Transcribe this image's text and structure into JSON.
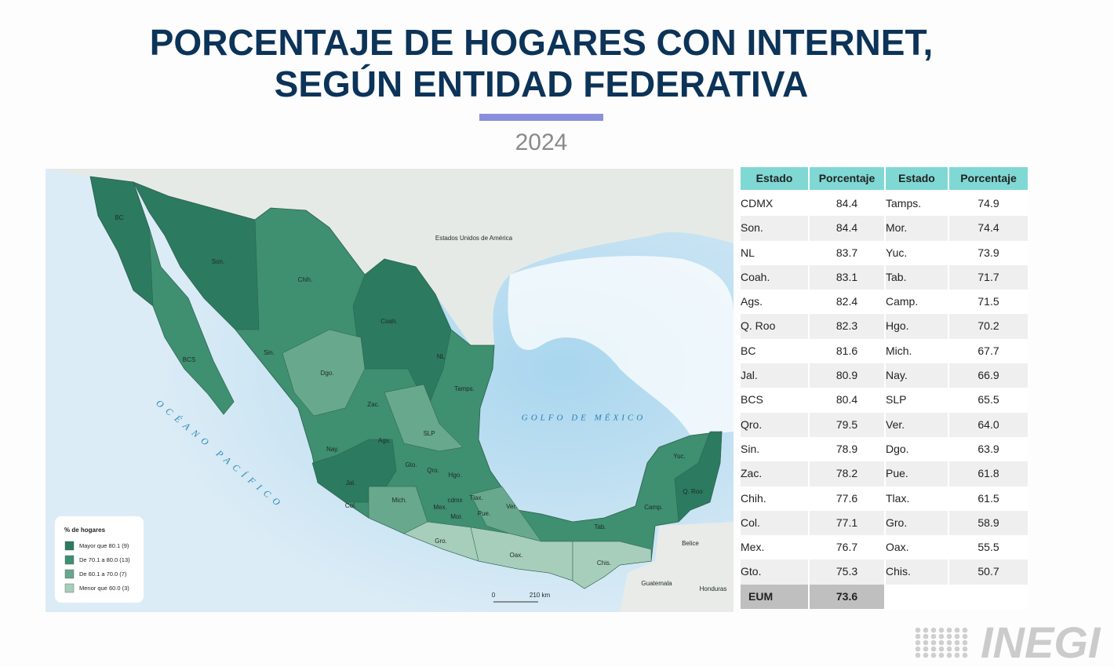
{
  "header": {
    "title_line1": "PORCENTAJE DE HOGARES CON INTERNET,",
    "title_line2": "SEGÚN ENTIDAD FEDERATIVA",
    "year": "2024"
  },
  "map": {
    "labels": [
      "BC",
      "Son.",
      "Chih.",
      "Coah.",
      "NL",
      "Tamps.",
      "BCS",
      "Sin.",
      "Dgo.",
      "Zac.",
      "SLP",
      "Nay.",
      "Ags.",
      "Jal.",
      "Gto.",
      "Qro.",
      "Hgo.",
      "Col.",
      "Mich.",
      "Mex.",
      "cdmx",
      "Tlax.",
      "Mor.",
      "Pue.",
      "Ver.",
      "Gro.",
      "Oax.",
      "Chis.",
      "Tab.",
      "Camp.",
      "Yuc.",
      "Q. Roo"
    ],
    "places": [
      "Estados Unidos de América",
      "GOLFO DE MÉXICO",
      "OCÉANO PACÍFICO",
      "Belice",
      "Guatemala",
      "Honduras"
    ],
    "legend": {
      "title": "% de hogares",
      "items": [
        {
          "label": "Mayor que 80.1 (9)",
          "color": "#2c7a60"
        },
        {
          "label": "De 70.1 a 80.0 (13)",
          "color": "#3f8f71"
        },
        {
          "label": "De 60.1 a 70.0 (7)",
          "color": "#68a88c"
        },
        {
          "label": "Menor que 60.0 (3)",
          "color": "#a7cebb"
        }
      ]
    },
    "scale": [
      "0",
      "210 km"
    ]
  },
  "table": {
    "columns": [
      "Estado",
      "Porcentaje",
      "Estado",
      "Porcentaje"
    ],
    "rows": [
      [
        "CDMX",
        "84.4",
        "Tamps.",
        "74.9"
      ],
      [
        "Son.",
        "84.4",
        "Mor.",
        "74.4"
      ],
      [
        "NL",
        "83.7",
        "Yuc.",
        "73.9"
      ],
      [
        "Coah.",
        "83.1",
        "Tab.",
        "71.7"
      ],
      [
        "Ags.",
        "82.4",
        "Camp.",
        "71.5"
      ],
      [
        "Q. Roo",
        "82.3",
        "Hgo.",
        "70.2"
      ],
      [
        "BC",
        "81.6",
        "Mich.",
        "67.7"
      ],
      [
        "Jal.",
        "80.9",
        "Nay.",
        "66.9"
      ],
      [
        "BCS",
        "80.4",
        "SLP",
        "65.5"
      ],
      [
        "Qro.",
        "79.5",
        "Ver.",
        "64.0"
      ],
      [
        "Sin.",
        "78.9",
        "Dgo.",
        "63.9"
      ],
      [
        "Zac.",
        "78.2",
        "Pue.",
        "61.8"
      ],
      [
        "Chih.",
        "77.6",
        "Tlax.",
        "61.5"
      ],
      [
        "Col.",
        "77.1",
        "Gro.",
        "58.9"
      ],
      [
        "Mex.",
        "76.7",
        "Oax.",
        "55.5"
      ],
      [
        "Gto.",
        "75.3",
        "Chis.",
        "50.7"
      ]
    ],
    "total": [
      "EUM",
      "73.6"
    ]
  },
  "logo": "INEGI"
}
